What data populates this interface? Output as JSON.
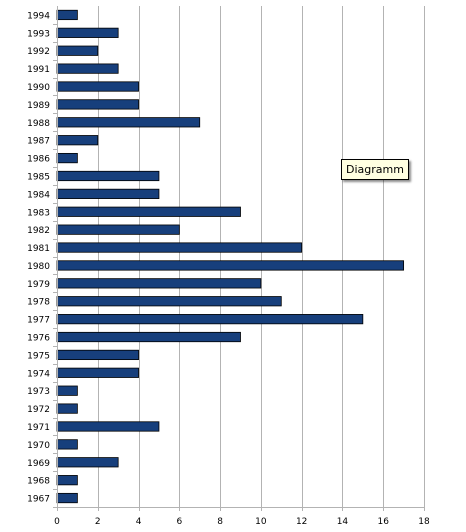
{
  "tooltip": {
    "text": "Diagramm"
  },
  "chart_data": {
    "type": "bar",
    "orientation": "horizontal",
    "title": "",
    "xlabel": "",
    "ylabel": "",
    "xlim": [
      0,
      18
    ],
    "x_ticks": [
      0,
      2,
      4,
      6,
      8,
      10,
      12,
      14,
      16,
      18
    ],
    "grid": "vertical",
    "legend": "none",
    "colors": {
      "bar_fill": "#173f7c",
      "bar_stroke": "#000000",
      "grid": "#b3b3b3",
      "axis": "#b3b3b3"
    },
    "categories": [
      "1994",
      "1993",
      "1992",
      "1991",
      "1990",
      "1989",
      "1988",
      "1987",
      "1986",
      "1985",
      "1984",
      "1983",
      "1982",
      "1981",
      "1980",
      "1979",
      "1978",
      "1977",
      "1976",
      "1975",
      "1974",
      "1973",
      "1972",
      "1971",
      "1970",
      "1969",
      "1968",
      "1967"
    ],
    "values": [
      1,
      3,
      2,
      3,
      4,
      4,
      7,
      2,
      1,
      5,
      5,
      9,
      6,
      12,
      17,
      10,
      11,
      15,
      9,
      4,
      4,
      1,
      1,
      5,
      1,
      3,
      1,
      1
    ]
  }
}
